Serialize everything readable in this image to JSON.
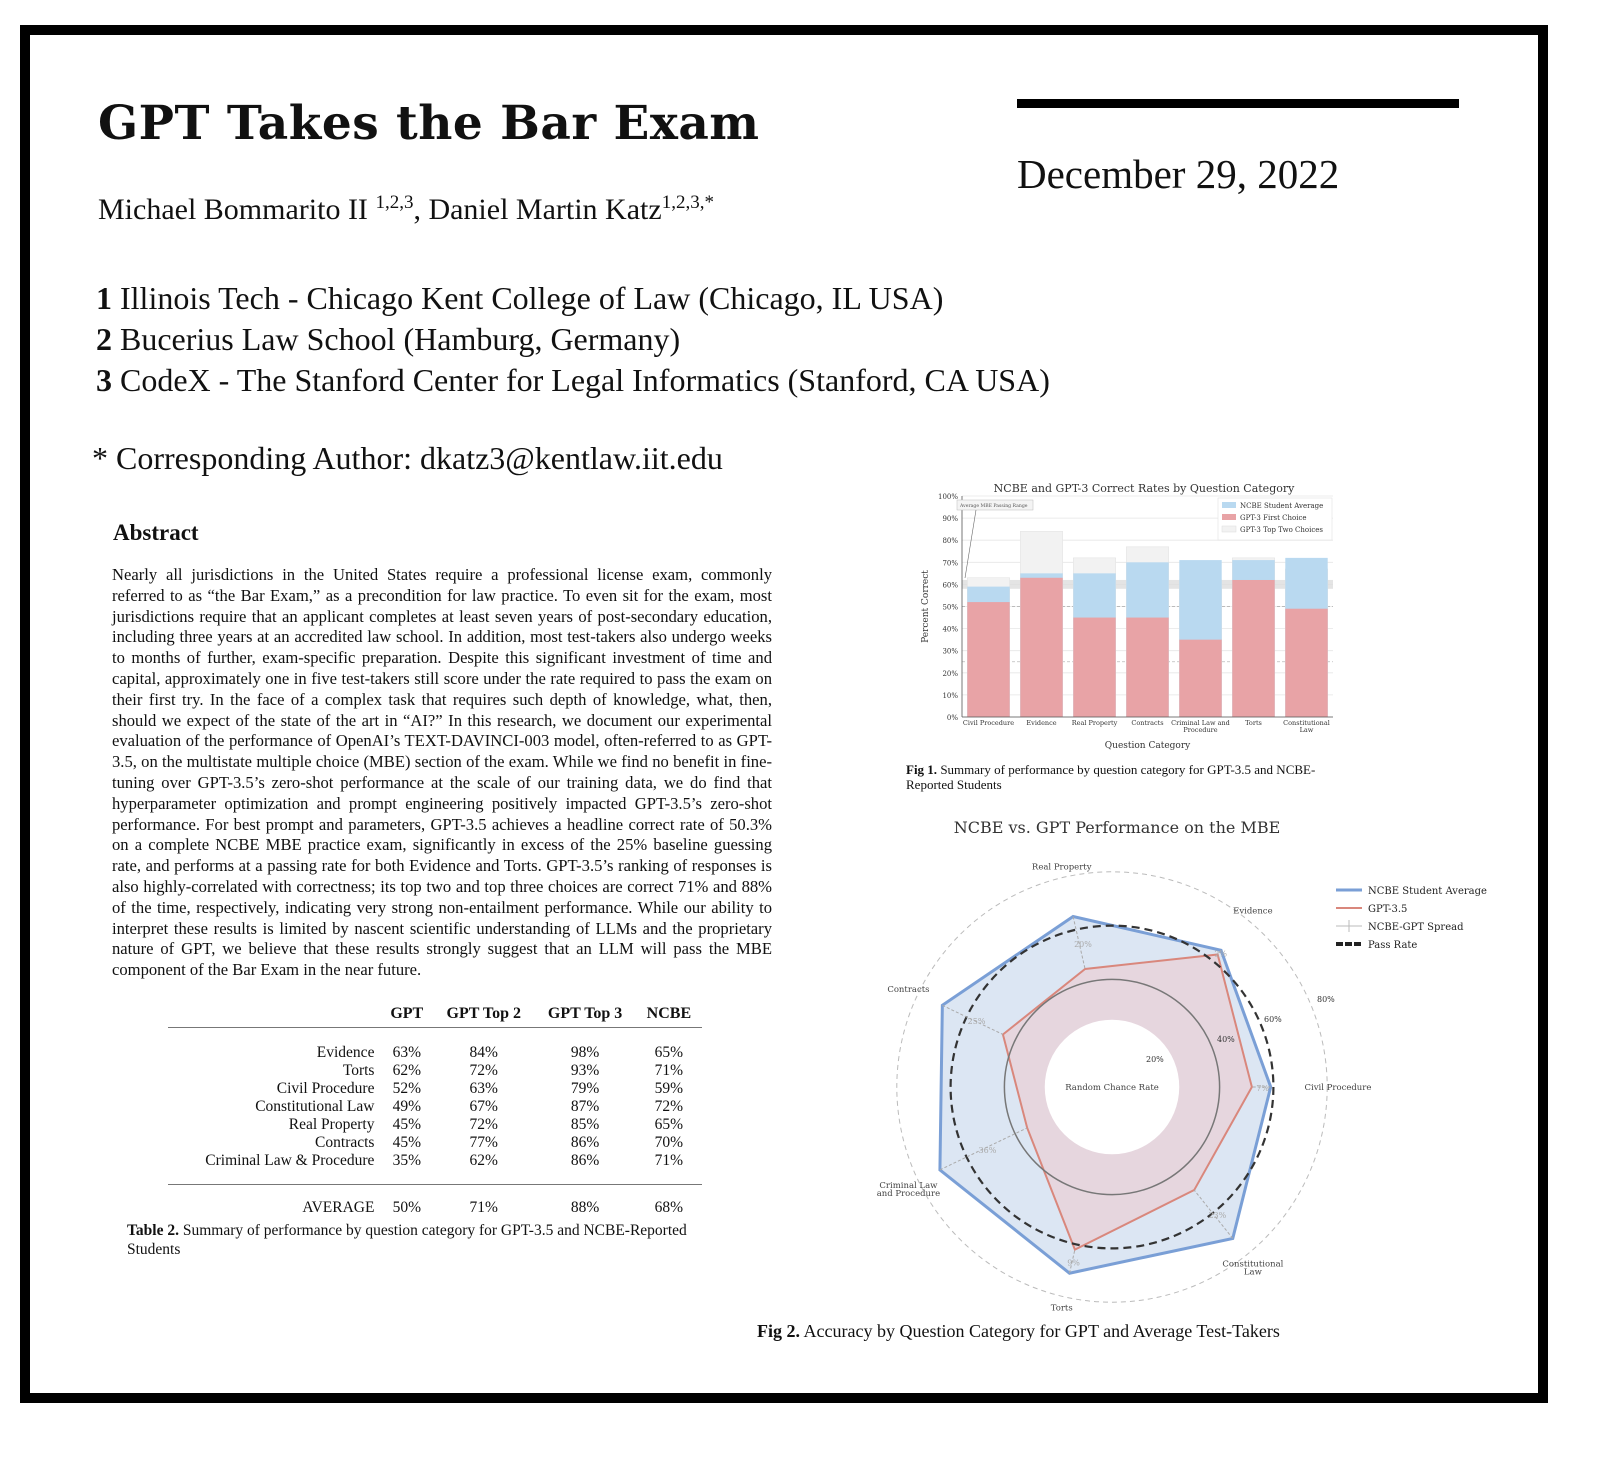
{
  "paper": {
    "title": "GPT Takes the Bar Exam",
    "date": "December 29, 2022",
    "authors": [
      {
        "name": "Michael Bommarito II ",
        "affil": "1,2,3"
      },
      {
        "name": "Daniel Martin Katz",
        "affil": "1,2,3,*"
      }
    ],
    "affiliations": [
      {
        "num": "1",
        "text": "Illinois Tech - Chicago Kent College of Law (Chicago, IL USA)"
      },
      {
        "num": "2",
        "text": "Bucerius Law School (Hamburg, Germany)"
      },
      {
        "num": "3",
        "text": "CodeX - The Stanford Center for Legal Informatics (Stanford, CA USA)"
      }
    ],
    "corresponding": "* Corresponding Author: dkatz3@kentlaw.iit.edu",
    "abstract_heading": "Abstract",
    "abstract": "Nearly all jurisdictions in the United States require a professional license exam, commonly referred to as “the Bar Exam,” as a precondition for law practice. To even sit for the exam, most jurisdictions require that an applicant completes at least seven years of post-secondary education, including three years at an accredited law school. In addition, most test-takers also undergo weeks to months of further, exam-specific preparation. Despite this significant investment of time and capital, approximately one in five test-takers still score under the rate required to pass the exam on their first try. In the face of a complex task that requires such depth of knowledge, what, then, should we expect of the state of the art in “AI?” In this research, we document our experimental evaluation of the performance of OpenAI’s TEXT-DAVINCI-003 model, often-referred to as GPT-3.5, on the multistate multiple choice (MBE) section of the exam. While we find no benefit in fine-tuning over GPT-3.5’s zero-shot performance at the scale of our training data, we do find that hyperparameter optimization and prompt engineering positively impacted GPT-3.5’s zero-shot performance. For best prompt and parameters, GPT-3.5 achieves a headline correct rate of 50.3% on a complete NCBE MBE practice exam, significantly in excess of the 25% baseline guessing rate, and performs at a passing rate for both Evidence and Torts. GPT-3.5’s ranking of responses is also highly-correlated with correctness; its top two and top three choices are correct 71% and 88% of the time, respectively, indicating very strong non-entailment performance. While our ability to interpret these results is limited by nascent scientific understanding of LLMs and the proprietary nature of GPT, we believe that these results strongly suggest that an LLM will pass the MBE component of the Bar Exam in the near future."
  },
  "table2": {
    "headers": [
      "",
      "GPT",
      "GPT Top 2",
      "GPT Top 3",
      "NCBE"
    ],
    "rows": [
      [
        "Evidence",
        "63%",
        "84%",
        "98%",
        "65%"
      ],
      [
        "Torts",
        "62%",
        "72%",
        "93%",
        "71%"
      ],
      [
        "Civil Procedure",
        "52%",
        "63%",
        "79%",
        "59%"
      ],
      [
        "Constitutional Law",
        "49%",
        "67%",
        "87%",
        "72%"
      ],
      [
        "Real Property",
        "45%",
        "72%",
        "85%",
        "65%"
      ],
      [
        "Contracts",
        "45%",
        "77%",
        "86%",
        "70%"
      ],
      [
        "Criminal Law & Procedure",
        "35%",
        "62%",
        "86%",
        "71%"
      ]
    ],
    "average": [
      "AVERAGE",
      "50%",
      "71%",
      "88%",
      "68%"
    ],
    "caption_label": "Table 2.",
    "caption": "Summary of performance by question category for GPT-3.5 and NCBE-Reported Students"
  },
  "fig1_caption": {
    "label": "Fig 1.",
    "text": "Summary of performance by question category for GPT-3.5 and NCBE-Reported Students"
  },
  "fig2_caption": {
    "label": "Fig 2.",
    "text": "Accuracy by Question Category for GPT and Average Test-Takers"
  },
  "chart_data": [
    {
      "type": "bar",
      "title": "NCBE and GPT-3 Correct Rates by Question Category",
      "xlabel": "Question Category",
      "ylabel": "Percent Correct",
      "ylim": [
        0,
        100
      ],
      "yticks": [
        "0%",
        "10%",
        "20%",
        "30%",
        "40%",
        "50%",
        "60%",
        "70%",
        "80%",
        "90%",
        "100%"
      ],
      "categories": [
        "Civil Procedure",
        "Evidence",
        "Real Property",
        "Contracts",
        "Criminal Law and Procedure",
        "Torts",
        "Constitutional Law"
      ],
      "series": [
        {
          "name": "NCBE Student Average",
          "values": [
            59,
            65,
            65,
            70,
            71,
            71,
            72
          ],
          "color": "#b9d9f0"
        },
        {
          "name": "GPT-3 First Choice",
          "values": [
            52,
            63,
            45,
            45,
            35,
            62,
            49
          ],
          "color": "#e8a3a6"
        },
        {
          "name": "GPT-3 Top Two Choices",
          "values": [
            63,
            84,
            72,
            77,
            62,
            72,
            67
          ],
          "color": "#f2f2f2"
        }
      ],
      "annotation": "Average MBE Passing Range",
      "passing_range": [
        58,
        62
      ],
      "grid": true,
      "legend": "top-right"
    },
    {
      "type": "radar",
      "title": "NCBE vs. GPT Performance on the MBE",
      "categories": [
        "Civil Procedure",
        "Evidence",
        "Real Property",
        "Contracts",
        "Criminal Law and Procedure",
        "Torts",
        "Constitutional Law"
      ],
      "series": [
        {
          "name": "NCBE Student Average",
          "values": [
            59,
            65,
            65,
            70,
            71,
            71,
            72
          ],
          "color": "#7a9fd6"
        },
        {
          "name": "GPT-3.5",
          "values": [
            52,
            63,
            45,
            45,
            35,
            62,
            49
          ],
          "color": "#d9877c"
        }
      ],
      "spread_name": "NCBE-GPT Spread",
      "spread_labels": [
        "7%",
        "2%",
        "20%",
        "25%",
        "36%",
        "9%",
        "23%"
      ],
      "pass_rate_name": "Pass Rate",
      "pass_rate": 60,
      "ring_labels": [
        "20%",
        "40%",
        "60%",
        "80%"
      ],
      "center_label": "Random Chance Rate",
      "random_chance": 25,
      "legend": "top-right"
    }
  ]
}
